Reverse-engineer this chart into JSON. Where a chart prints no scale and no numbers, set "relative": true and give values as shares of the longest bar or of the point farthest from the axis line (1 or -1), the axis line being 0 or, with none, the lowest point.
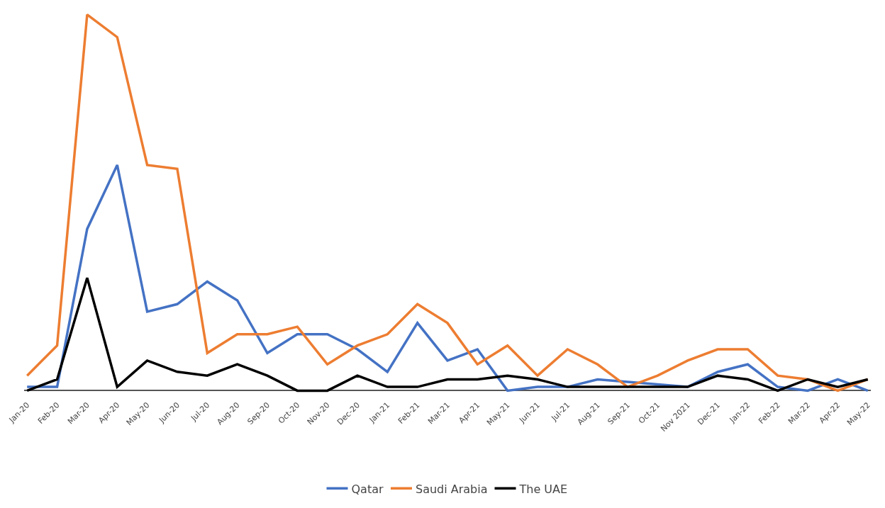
{
  "chart_data": {
    "type": "line",
    "relative": true,
    "legend": "bottom",
    "grid": false,
    "marker": "none",
    "line_style": "solid",
    "categories": [
      "Jan-20",
      "Feb-20",
      "Mar-20",
      "Apr-20",
      "May-20",
      "Jun-20",
      "Jul-20",
      "Aug-20",
      "Sep-20",
      "Oct-20",
      "Nov-20",
      "Dec-20",
      "Jan-21",
      "Feb-21",
      "Mar-21",
      "Apr-21",
      "May-21",
      "Jun-21",
      "Jul-21",
      "Aug-21",
      "Sep-21",
      "Oct-21",
      "Nov 2021",
      "Dec-21",
      "Jan-22",
      "Feb-22",
      "Mar-22",
      "Apr-22",
      "May-22"
    ],
    "series": [
      {
        "name": "Qatar",
        "color": "#4472c4",
        "values": [
          0.01,
          0.01,
          0.43,
          0.6,
          0.21,
          0.23,
          0.29,
          0.24,
          0.1,
          0.15,
          0.15,
          0.11,
          0.05,
          0.18,
          0.08,
          0.11,
          0,
          0.01,
          0.01,
          0.03,
          null,
          null,
          0.01,
          0.05,
          0.07,
          0.01,
          0,
          0.03,
          0
        ]
      },
      {
        "name": "Saudi Arabia",
        "color": "#ed7d31",
        "values": [
          0.04,
          0.12,
          1,
          0.94,
          0.6,
          0.59,
          0.1,
          0.15,
          0.15,
          0.17,
          0.07,
          0.12,
          0.15,
          0.23,
          0.18,
          0.07,
          0.12,
          0.04,
          0.11,
          0.07,
          0.01,
          0.04,
          0.08,
          0.11,
          0.11,
          0.04,
          0.03,
          0,
          0.03
        ]
      },
      {
        "name": "The UAE",
        "color": "#000000",
        "values": [
          0,
          0.03,
          0.3,
          0.01,
          0.08,
          0.05,
          0.04,
          0.07,
          0.04,
          0,
          0,
          0.04,
          0.01,
          0.01,
          0.03,
          0.03,
          0.04,
          0.03,
          0.01,
          0.01,
          0.01,
          0.01,
          0.01,
          0.04,
          0.03,
          0,
          0.03,
          0.01,
          0.03
        ]
      }
    ]
  }
}
